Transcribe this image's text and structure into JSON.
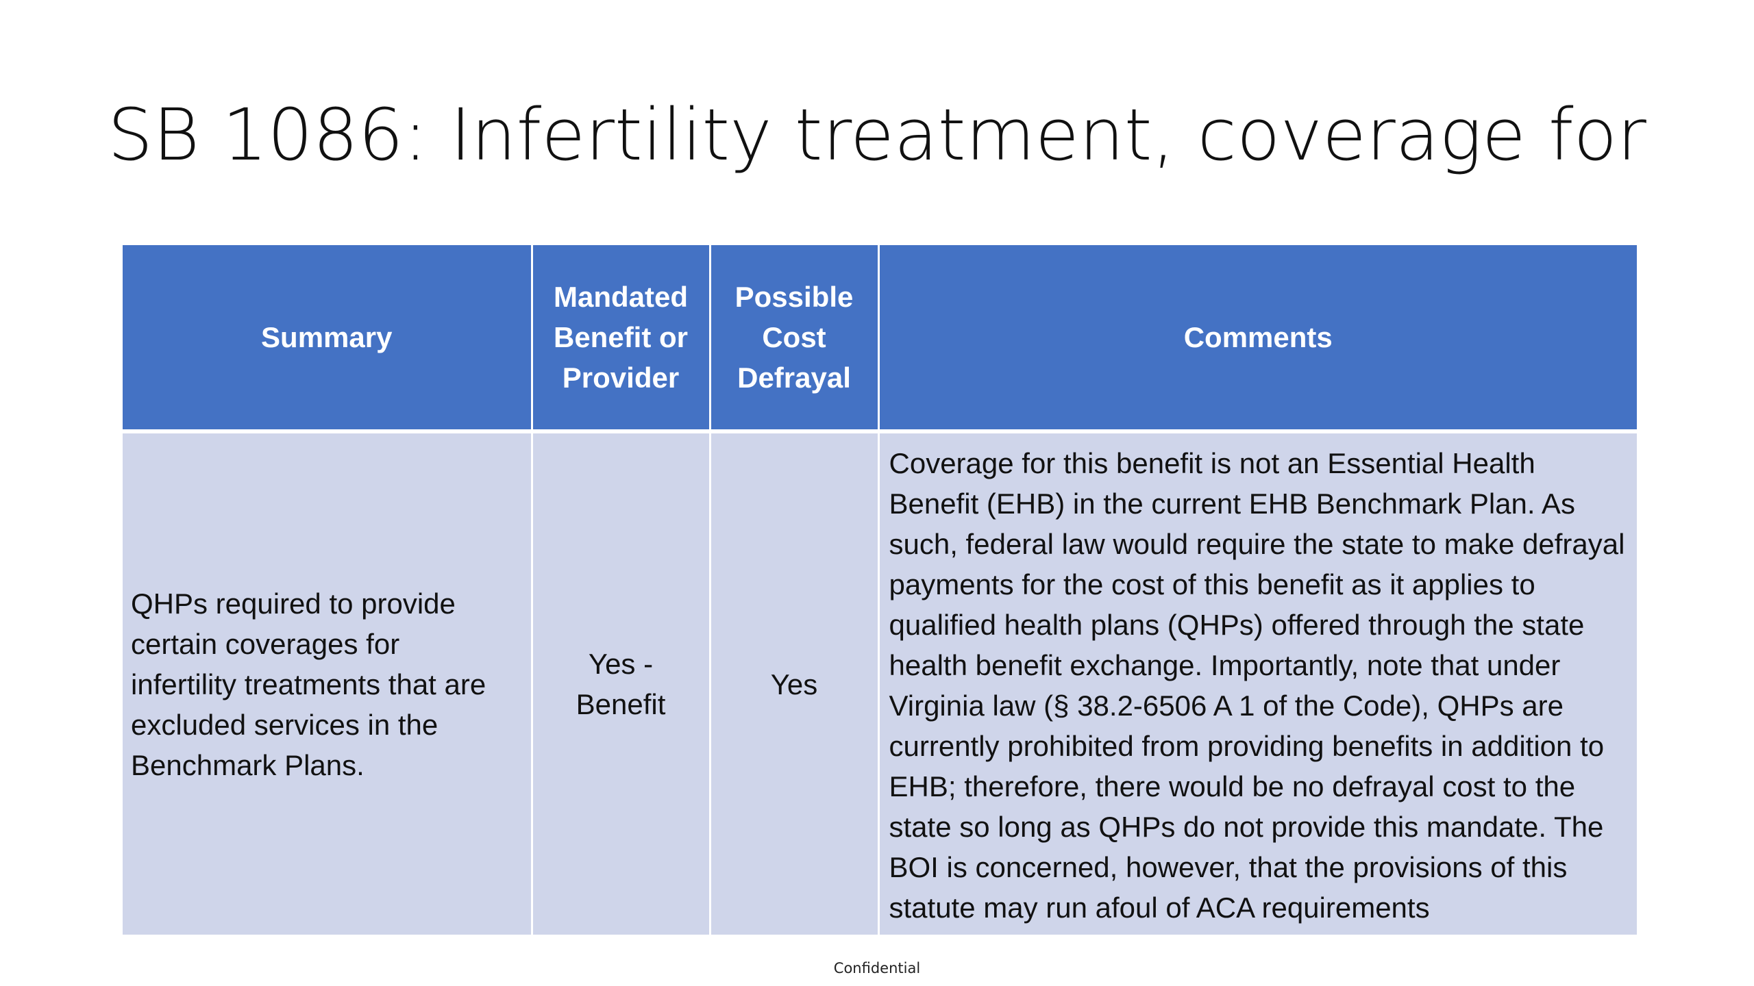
{
  "slide": {
    "title": "SB 1086: Infertility treatment, coverage for",
    "footer": "Confidential"
  },
  "table": {
    "headers": [
      {
        "line1": "Summary"
      },
      {
        "line1": "Mandated",
        "line2": "Benefit or",
        "line3": "Provider"
      },
      {
        "line1": "Possible",
        "line2": "Cost",
        "line3": "Defrayal"
      },
      {
        "line1": "Comments"
      }
    ],
    "row": {
      "summary": "QHPs required to provide certain coverages for infertility treatments that are excluded services in the Benchmark Plans.",
      "mandated_line1": "Yes -",
      "mandated_line2": "Benefit",
      "defrayal": "Yes",
      "comments": "Coverage for this benefit is not an Essential Health Benefit (EHB) in the current EHB Benchmark Plan.  As such, federal law would require the state to make defrayal payments for the cost of this benefit as it applies to qualified health plans (QHPs) offered through the state health benefit exchange.  Importantly, note that under Virginia law (§ 38.2-6506 A 1 of the Code), QHPs are currently prohibited from providing benefits in addition to EHB; therefore, there would be no defrayal cost to the state so long as QHPs do not provide this mandate. The BOI is concerned, however, that the provisions of this statute may run afoul of ACA requirements"
    }
  },
  "colors": {
    "header_bg": "#4472c4",
    "body_bg": "#cfd5ea",
    "header_text": "#ffffff"
  }
}
